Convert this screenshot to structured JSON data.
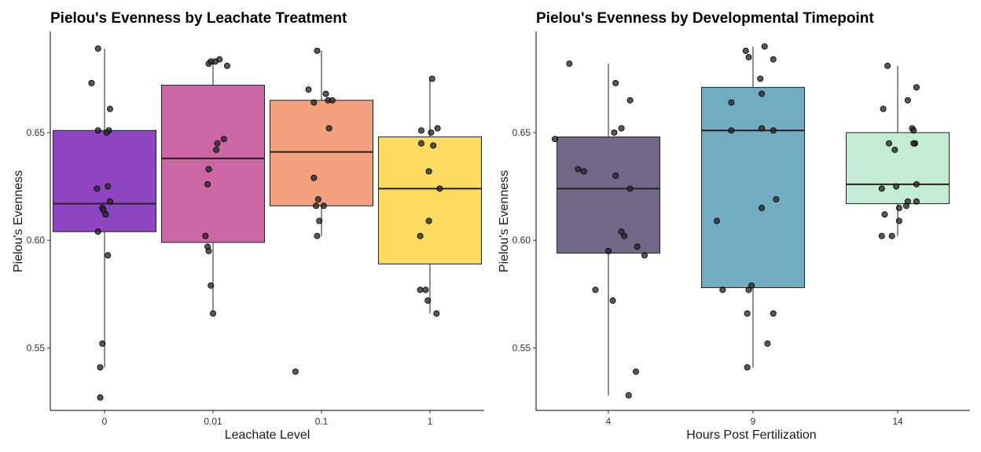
{
  "chart_data": [
    {
      "type": "box",
      "title": "Pielou's Evenness by Leachate Treatment",
      "xlabel": "Leachate Level",
      "ylabel": "Pielou's Evenness",
      "categories": [
        "0",
        "0.01",
        "0.1",
        "1"
      ],
      "ylim": [
        0.521,
        0.697
      ],
      "yticks": [
        0.55,
        0.6,
        0.65
      ],
      "ytick_labels": [
        "0.55",
        "0.60",
        "0.65"
      ],
      "grid": false,
      "boxes": [
        {
          "category": "0",
          "color": "#8F44C1",
          "q1": 0.604,
          "median": 0.617,
          "q3": 0.651,
          "whisker_low": 0.541,
          "whisker_high": 0.689
        },
        {
          "category": "0.01",
          "color": "#CC66A5",
          "q1": 0.599,
          "median": 0.638,
          "q3": 0.672,
          "whisker_low": 0.567,
          "whisker_high": 0.684
        },
        {
          "category": "0.1",
          "color": "#F2A07E",
          "q1": 0.616,
          "median": 0.641,
          "q3": 0.665,
          "whisker_low": 0.602,
          "whisker_high": 0.688
        },
        {
          "category": "1",
          "color": "#FCDB5E",
          "q1": 0.589,
          "median": 0.624,
          "q3": 0.648,
          "whisker_low": 0.566,
          "whisker_high": 0.675
        }
      ],
      "points": [
        {
          "category": "0",
          "x": -0.06,
          "y": 0.689
        },
        {
          "category": "0",
          "x": -0.12,
          "y": 0.673
        },
        {
          "category": "0",
          "x": 0.05,
          "y": 0.661
        },
        {
          "category": "0",
          "x": -0.06,
          "y": 0.651
        },
        {
          "category": "0",
          "x": 0.04,
          "y": 0.651
        },
        {
          "category": "0",
          "x": 0.02,
          "y": 0.65
        },
        {
          "category": "0",
          "x": 0.03,
          "y": 0.625
        },
        {
          "category": "0",
          "x": -0.07,
          "y": 0.624
        },
        {
          "category": "0",
          "x": 0.05,
          "y": 0.618
        },
        {
          "category": "0",
          "x": -0.02,
          "y": 0.615
        },
        {
          "category": "0",
          "x": -0.01,
          "y": 0.614
        },
        {
          "category": "0",
          "x": 0.01,
          "y": 0.612
        },
        {
          "category": "0",
          "x": -0.06,
          "y": 0.604
        },
        {
          "category": "0",
          "x": 0.03,
          "y": 0.593
        },
        {
          "category": "0",
          "x": -0.02,
          "y": 0.552
        },
        {
          "category": "0",
          "x": -0.04,
          "y": 0.541
        },
        {
          "category": "0",
          "x": -0.04,
          "y": 0.527
        },
        {
          "category": "0.01",
          "x": 0.06,
          "y": 0.684
        },
        {
          "category": "0.01",
          "x": 0.02,
          "y": 0.683
        },
        {
          "category": "0.01",
          "x": -0.02,
          "y": 0.683
        },
        {
          "category": "0.01",
          "x": -0.04,
          "y": 0.682
        },
        {
          "category": "0.01",
          "x": 0.13,
          "y": 0.681
        },
        {
          "category": "0.01",
          "x": 0.1,
          "y": 0.647
        },
        {
          "category": "0.01",
          "x": 0.04,
          "y": 0.645
        },
        {
          "category": "0.01",
          "x": 0.03,
          "y": 0.642
        },
        {
          "category": "0.01",
          "x": -0.04,
          "y": 0.633
        },
        {
          "category": "0.01",
          "x": -0.05,
          "y": 0.626
        },
        {
          "category": "0.01",
          "x": -0.07,
          "y": 0.602
        },
        {
          "category": "0.01",
          "x": -0.05,
          "y": 0.597
        },
        {
          "category": "0.01",
          "x": -0.04,
          "y": 0.595
        },
        {
          "category": "0.01",
          "x": -0.02,
          "y": 0.579
        },
        {
          "category": "0.01",
          "x": 0.0,
          "y": 0.566
        },
        {
          "category": "0.1",
          "x": -0.04,
          "y": 0.688
        },
        {
          "category": "0.1",
          "x": -0.12,
          "y": 0.67
        },
        {
          "category": "0.1",
          "x": 0.04,
          "y": 0.668
        },
        {
          "category": "0.1",
          "x": -0.07,
          "y": 0.664
        },
        {
          "category": "0.1",
          "x": 0.06,
          "y": 0.665
        },
        {
          "category": "0.1",
          "x": 0.1,
          "y": 0.665
        },
        {
          "category": "0.1",
          "x": 0.07,
          "y": 0.652
        },
        {
          "category": "0.1",
          "x": -0.07,
          "y": 0.629
        },
        {
          "category": "0.1",
          "x": -0.03,
          "y": 0.619
        },
        {
          "category": "0.1",
          "x": -0.05,
          "y": 0.616
        },
        {
          "category": "0.1",
          "x": 0.02,
          "y": 0.616
        },
        {
          "category": "0.1",
          "x": -0.02,
          "y": 0.609
        },
        {
          "category": "0.1",
          "x": -0.04,
          "y": 0.602
        },
        {
          "category": "0.1",
          "x": -0.24,
          "y": 0.539
        },
        {
          "category": "1",
          "x": 0.02,
          "y": 0.675
        },
        {
          "category": "1",
          "x": -0.08,
          "y": 0.651
        },
        {
          "category": "1",
          "x": 0.01,
          "y": 0.65
        },
        {
          "category": "1",
          "x": 0.07,
          "y": 0.652
        },
        {
          "category": "1",
          "x": -0.08,
          "y": 0.645
        },
        {
          "category": "1",
          "x": 0.03,
          "y": 0.644
        },
        {
          "category": "1",
          "x": 0.09,
          "y": 0.624
        },
        {
          "category": "1",
          "x": -0.01,
          "y": 0.632
        },
        {
          "category": "1",
          "x": -0.01,
          "y": 0.609
        },
        {
          "category": "1",
          "x": -0.09,
          "y": 0.602
        },
        {
          "category": "1",
          "x": -0.09,
          "y": 0.577
        },
        {
          "category": "1",
          "x": -0.04,
          "y": 0.577
        },
        {
          "category": "1",
          "x": -0.02,
          "y": 0.572
        },
        {
          "category": "1",
          "x": 0.06,
          "y": 0.566
        }
      ]
    },
    {
      "type": "box",
      "title": "Pielou's Evenness by Developmental Timepoint",
      "xlabel": "Hours Post Fertilization",
      "ylabel": "Pielou's Evenness",
      "categories": [
        "4",
        "9",
        "14"
      ],
      "ylim": [
        0.521,
        0.697
      ],
      "yticks": [
        0.55,
        0.6,
        0.65
      ],
      "ytick_labels": [
        "0.55",
        "0.60",
        "0.65"
      ],
      "grid": false,
      "boxes": [
        {
          "category": "4",
          "color": "#736887",
          "q1": 0.594,
          "median": 0.624,
          "q3": 0.648,
          "whisker_low": 0.528,
          "whisker_high": 0.682
        },
        {
          "category": "9",
          "color": "#72ACC3",
          "q1": 0.578,
          "median": 0.651,
          "q3": 0.671,
          "whisker_low": 0.541,
          "whisker_high": 0.69
        },
        {
          "category": "14",
          "color": "#C4EBD3",
          "q1": 0.617,
          "median": 0.626,
          "q3": 0.65,
          "whisker_low": 0.602,
          "whisker_high": 0.681
        }
      ],
      "points": [
        {
          "category": "4",
          "x": -0.27,
          "y": 0.682
        },
        {
          "category": "4",
          "x": 0.05,
          "y": 0.673
        },
        {
          "category": "4",
          "x": 0.15,
          "y": 0.665
        },
        {
          "category": "4",
          "x": 0.09,
          "y": 0.652
        },
        {
          "category": "4",
          "x": 0.04,
          "y": 0.65
        },
        {
          "category": "4",
          "x": -0.37,
          "y": 0.647
        },
        {
          "category": "4",
          "x": -0.21,
          "y": 0.633
        },
        {
          "category": "4",
          "x": -0.17,
          "y": 0.632
        },
        {
          "category": "4",
          "x": 0.05,
          "y": 0.63
        },
        {
          "category": "4",
          "x": 0.15,
          "y": 0.624
        },
        {
          "category": "4",
          "x": 0.09,
          "y": 0.604
        },
        {
          "category": "4",
          "x": 0.11,
          "y": 0.602
        },
        {
          "category": "4",
          "x": 0.2,
          "y": 0.597
        },
        {
          "category": "4",
          "x": 0.0,
          "y": 0.595
        },
        {
          "category": "4",
          "x": 0.25,
          "y": 0.593
        },
        {
          "category": "4",
          "x": -0.09,
          "y": 0.577
        },
        {
          "category": "4",
          "x": 0.03,
          "y": 0.572
        },
        {
          "category": "4",
          "x": 0.19,
          "y": 0.539
        },
        {
          "category": "4",
          "x": 0.14,
          "y": 0.528
        },
        {
          "category": "9",
          "x": 0.08,
          "y": 0.69
        },
        {
          "category": "9",
          "x": -0.05,
          "y": 0.688
        },
        {
          "category": "9",
          "x": 0.14,
          "y": 0.684
        },
        {
          "category": "9",
          "x": -0.03,
          "y": 0.685
        },
        {
          "category": "9",
          "x": 0.05,
          "y": 0.675
        },
        {
          "category": "9",
          "x": 0.06,
          "y": 0.668
        },
        {
          "category": "9",
          "x": -0.15,
          "y": 0.664
        },
        {
          "category": "9",
          "x": -0.15,
          "y": 0.651
        },
        {
          "category": "9",
          "x": 0.06,
          "y": 0.652
        },
        {
          "category": "9",
          "x": 0.14,
          "y": 0.651
        },
        {
          "category": "9",
          "x": 0.16,
          "y": 0.619
        },
        {
          "category": "9",
          "x": 0.06,
          "y": 0.615
        },
        {
          "category": "9",
          "x": -0.25,
          "y": 0.609
        },
        {
          "category": "9",
          "x": -0.01,
          "y": 0.579
        },
        {
          "category": "9",
          "x": -0.03,
          "y": 0.577
        },
        {
          "category": "9",
          "x": -0.21,
          "y": 0.577
        },
        {
          "category": "9",
          "x": -0.04,
          "y": 0.566
        },
        {
          "category": "9",
          "x": 0.14,
          "y": 0.566
        },
        {
          "category": "9",
          "x": 0.1,
          "y": 0.552
        },
        {
          "category": "9",
          "x": -0.04,
          "y": 0.541
        },
        {
          "category": "14",
          "x": -0.07,
          "y": 0.681
        },
        {
          "category": "14",
          "x": 0.07,
          "y": 0.665
        },
        {
          "category": "14",
          "x": 0.13,
          "y": 0.671
        },
        {
          "category": "14",
          "x": -0.1,
          "y": 0.661
        },
        {
          "category": "14",
          "x": 0.1,
          "y": 0.652
        },
        {
          "category": "14",
          "x": 0.11,
          "y": 0.651
        },
        {
          "category": "14",
          "x": -0.06,
          "y": 0.645
        },
        {
          "category": "14",
          "x": 0.12,
          "y": 0.645
        },
        {
          "category": "14",
          "x": -0.02,
          "y": 0.642
        },
        {
          "category": "14",
          "x": 0.11,
          "y": 0.645
        },
        {
          "category": "14",
          "x": -0.11,
          "y": 0.624
        },
        {
          "category": "14",
          "x": -0.01,
          "y": 0.625
        },
        {
          "category": "14",
          "x": 0.13,
          "y": 0.626
        },
        {
          "category": "14",
          "x": 0.07,
          "y": 0.618
        },
        {
          "category": "14",
          "x": 0.06,
          "y": 0.616
        },
        {
          "category": "14",
          "x": 0.13,
          "y": 0.618
        },
        {
          "category": "14",
          "x": -0.09,
          "y": 0.612
        },
        {
          "category": "14",
          "x": 0.01,
          "y": 0.615
        },
        {
          "category": "14",
          "x": 0.01,
          "y": 0.609
        },
        {
          "category": "14",
          "x": -0.11,
          "y": 0.602
        },
        {
          "category": "14",
          "x": -0.04,
          "y": 0.602
        }
      ]
    }
  ]
}
